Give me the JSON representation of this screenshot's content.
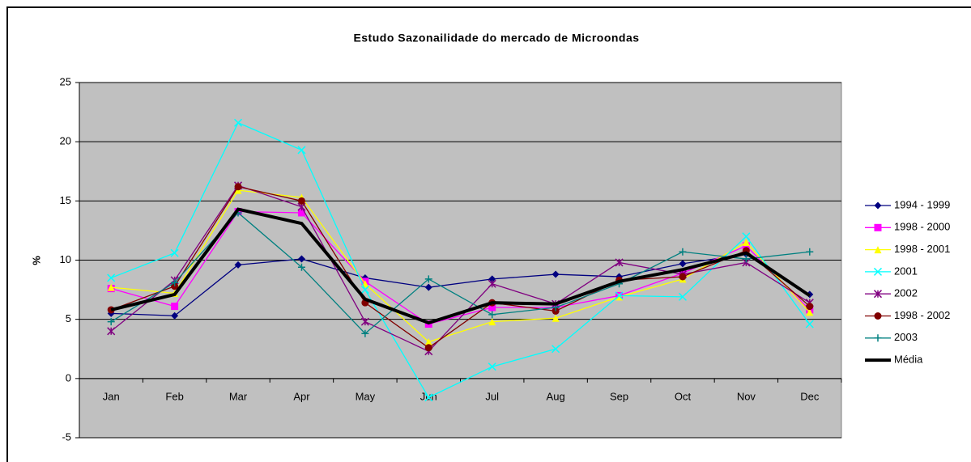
{
  "chart_data": {
    "type": "line",
    "title": "Estudo Sazonailidade do mercado de Microondas",
    "y_label": "%",
    "categories": [
      "Jan",
      "Feb",
      "Mar",
      "Apr",
      "May",
      "Jun",
      "Jul",
      "Aug",
      "Sep",
      "Oct",
      "Nov",
      "Dec"
    ],
    "series": [
      {
        "name": "1994 - 1999",
        "color": "#000080",
        "marker": "diamond",
        "values": [
          5.5,
          5.3,
          9.6,
          10.1,
          8.5,
          7.7,
          8.4,
          8.8,
          8.6,
          9.7,
          10.5,
          7.1
        ]
      },
      {
        "name": "1998 - 2000",
        "color": "#ff00ff",
        "marker": "square",
        "values": [
          7.6,
          6.1,
          14.1,
          14.0,
          8.2,
          4.6,
          6.0,
          6.0,
          7.0,
          8.9,
          11.2,
          5.8
        ]
      },
      {
        "name": "1998 - 2001",
        "color": "#ffff00",
        "marker": "triangle",
        "values": [
          7.7,
          7.2,
          15.9,
          15.3,
          8.0,
          3.1,
          4.8,
          5.1,
          6.9,
          8.4,
          11.5,
          5.6
        ]
      },
      {
        "name": "2001",
        "color": "#00ffff",
        "marker": "x",
        "values": [
          8.5,
          10.6,
          21.6,
          19.3,
          7.5,
          -1.6,
          1.0,
          2.5,
          7.0,
          6.9,
          12.0,
          4.6
        ]
      },
      {
        "name": "2002",
        "color": "#800080",
        "marker": "star",
        "values": [
          4.0,
          8.3,
          16.3,
          14.5,
          4.8,
          2.3,
          8.0,
          6.3,
          9.8,
          8.8,
          9.8,
          6.4
        ]
      },
      {
        "name": "1998 - 2002",
        "color": "#800000",
        "marker": "circle",
        "values": [
          5.8,
          7.8,
          16.2,
          15.0,
          6.4,
          2.6,
          6.4,
          5.7,
          8.3,
          8.6,
          10.8,
          6.1
        ]
      },
      {
        "name": "2003",
        "color": "#008080",
        "marker": "plus",
        "values": [
          4.8,
          8.1,
          14.0,
          9.4,
          3.8,
          8.4,
          5.4,
          6.0,
          8.0,
          10.7,
          10.1,
          10.7
        ]
      },
      {
        "name": "Média",
        "color": "#000000",
        "marker": "none",
        "width": 4,
        "values": [
          5.8,
          7.1,
          14.3,
          13.1,
          6.7,
          4.7,
          6.4,
          6.3,
          8.2,
          9.2,
          10.6,
          7.0
        ]
      }
    ],
    "ylim": [
      -5,
      25
    ],
    "yticks": [
      -5,
      0,
      5,
      10,
      15,
      20,
      25
    ],
    "grid": true,
    "legend": "right"
  }
}
